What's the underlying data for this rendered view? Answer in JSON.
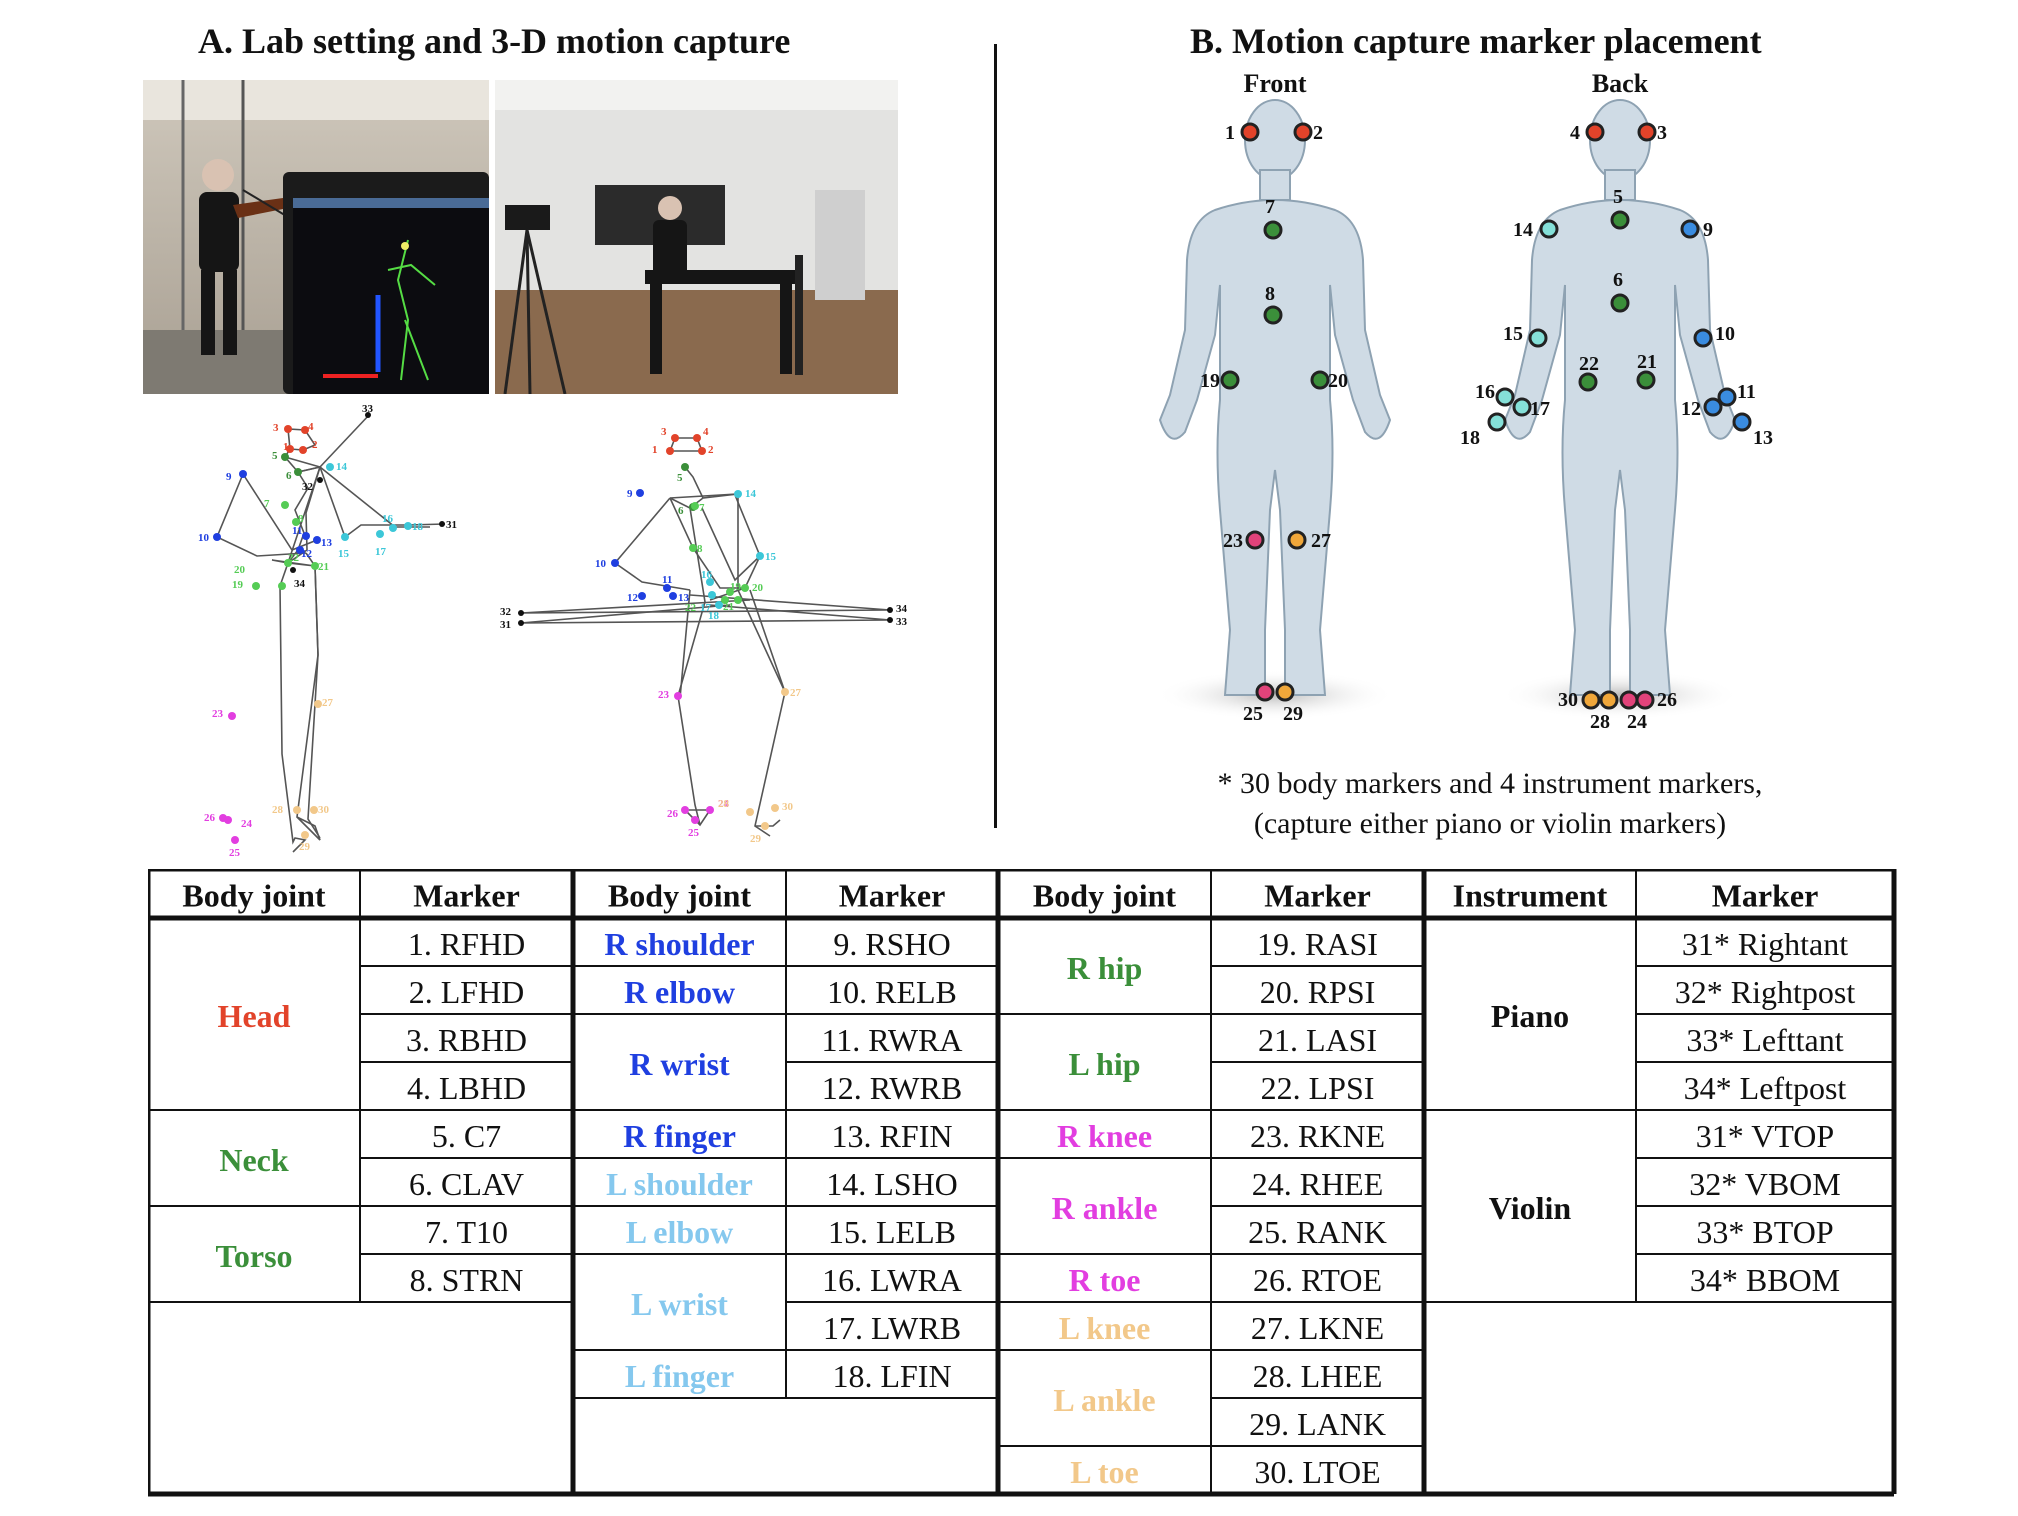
{
  "panel_a": {
    "title": "A. Lab setting and 3-D motion capture",
    "skeleton_left_labels": [
      "1",
      "2",
      "3",
      "4",
      "5",
      "6",
      "7",
      "8",
      "9",
      "10",
      "11",
      "12",
      "13",
      "14",
      "15",
      "16",
      "17",
      "18",
      "19",
      "20",
      "21",
      "22",
      "23",
      "24",
      "25",
      "26",
      "27",
      "28",
      "29",
      "30",
      "31",
      "32",
      "33",
      "34"
    ],
    "skeleton_right_labels": [
      "1",
      "2",
      "3",
      "4",
      "5",
      "6",
      "7",
      "8",
      "9",
      "10",
      "11",
      "12",
      "13",
      "14",
      "15",
      "16",
      "17",
      "18",
      "19",
      "20",
      "21",
      "22",
      "23",
      "24",
      "25",
      "26",
      "27",
      "28",
      "29",
      "30",
      "31",
      "32",
      "33",
      "34"
    ]
  },
  "panel_b": {
    "title": "B. Motion capture marker placement",
    "front_label": "Front",
    "back_label": "Back",
    "front_markers": [
      "1",
      "2",
      "7",
      "8",
      "19",
      "20",
      "23",
      "27",
      "25",
      "29"
    ],
    "back_markers": [
      "4",
      "3",
      "5",
      "14",
      "9",
      "6",
      "15",
      "10",
      "22",
      "21",
      "16",
      "17",
      "18",
      "11",
      "12",
      "13",
      "30",
      "28",
      "24",
      "26"
    ],
    "note_line1": "* 30 body markers and 4 instrument markers,",
    "note_line2": "(capture either piano or violin markers)"
  },
  "colors": {
    "head": "#e2432a",
    "neck": "#3b8f3a",
    "torso": "#3b8f3a",
    "r_arm": "#1f3fe0",
    "l_arm": "#85c8ee",
    "r_hip": "#3b8f3a",
    "l_hip": "#3b8f3a",
    "r_leg": "#e23ee0",
    "l_leg": "#f2c88a",
    "black": "#111111"
  },
  "table": {
    "headers": [
      "Body joint",
      "Marker",
      "Body joint",
      "Marker",
      "Body joint",
      "Marker",
      "Instrument",
      "Marker"
    ],
    "group1": {
      "joints": [
        {
          "label": "Head",
          "color": "#e2432a",
          "rows": 4
        },
        {
          "label": "Neck",
          "color": "#3b8f3a",
          "rows": 2
        },
        {
          "label": "Torso",
          "color": "#3b8f3a",
          "rows": 2
        }
      ],
      "markers": [
        "1. RFHD",
        "2. LFHD",
        "3. RBHD",
        "4. LBHD",
        "5. C7",
        "6. CLAV",
        "7. T10",
        "8. STRN"
      ]
    },
    "group2": {
      "joints": [
        {
          "label": "R shoulder",
          "color": "#1f3fe0",
          "rows": 1
        },
        {
          "label": "R elbow",
          "color": "#1f3fe0",
          "rows": 1
        },
        {
          "label": "R wrist",
          "color": "#1f3fe0",
          "rows": 2
        },
        {
          "label": "R finger",
          "color": "#1f3fe0",
          "rows": 1
        },
        {
          "label": "L shoulder",
          "color": "#85c8ee",
          "rows": 1
        },
        {
          "label": "L elbow",
          "color": "#85c8ee",
          "rows": 1
        },
        {
          "label": "L wrist",
          "color": "#85c8ee",
          "rows": 2
        },
        {
          "label": "L finger",
          "color": "#85c8ee",
          "rows": 1
        }
      ],
      "markers": [
        "9. RSHO",
        "10. RELB",
        "11. RWRA",
        "12. RWRB",
        "13. RFIN",
        "14. LSHO",
        "15. LELB",
        "16. LWRA",
        "17. LWRB",
        "18. LFIN"
      ]
    },
    "group3": {
      "joints": [
        {
          "label": "R hip",
          "color": "#3b8f3a",
          "rows": 2
        },
        {
          "label": "L hip",
          "color": "#3b8f3a",
          "rows": 2
        },
        {
          "label": "R knee",
          "color": "#e23ee0",
          "rows": 1
        },
        {
          "label": "R ankle",
          "color": "#e23ee0",
          "rows": 2
        },
        {
          "label": "R toe",
          "color": "#e23ee0",
          "rows": 1
        },
        {
          "label": "L knee",
          "color": "#f2c88a",
          "rows": 1
        },
        {
          "label": "L ankle",
          "color": "#f2c88a",
          "rows": 2
        },
        {
          "label": "L toe",
          "color": "#f2c88a",
          "rows": 1
        }
      ],
      "markers": [
        "19. RASI",
        "20. RPSI",
        "21. LASI",
        "22. LPSI",
        "23. RKNE",
        "24. RHEE",
        "25. RANK",
        "26. RTOE",
        "27. LKNE",
        "28. LHEE",
        "29. LANK",
        "30. LTOE"
      ]
    },
    "group4": {
      "joints": [
        {
          "label": "Piano",
          "color": "#111111",
          "rows": 4
        },
        {
          "label": "Violin",
          "color": "#111111",
          "rows": 4
        }
      ],
      "markers": [
        "31* Rightant",
        "32* Rightpost",
        "33* Lefttant",
        "34* Leftpost",
        "31* VTOP",
        "32* VBOM",
        "33* BTOP",
        "34* BBOM"
      ]
    }
  }
}
